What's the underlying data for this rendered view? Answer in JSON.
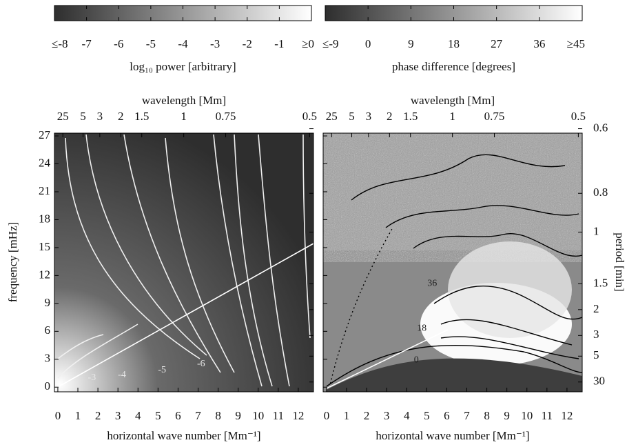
{
  "chart_data": [
    {
      "type": "heatmap",
      "colorbar": {
        "label": "log₁₀ power [arbitrary]",
        "lim": [
          -8,
          0
        ],
        "ticks": [
          {
            "value": -8,
            "label": "≤-8"
          },
          -7,
          -6,
          -5,
          -4,
          -3,
          -2,
          -1,
          {
            "value": 0,
            "label": "≥0"
          }
        ]
      },
      "colormap": [
        "#2e2e2e",
        "#ffffff"
      ],
      "top_axis": {
        "label": "wavelength [Mm]",
        "ticks": [
          25,
          5,
          3,
          2,
          1.5,
          1,
          0.75,
          0.5
        ]
      },
      "xlabel": "horizontal wave number [Mm⁻¹]",
      "ylabel": "frequency [mHz]",
      "xlim": [
        -0.17,
        12.76
      ],
      "xticks": [
        0,
        1,
        2,
        3,
        4,
        5,
        6,
        7,
        8,
        9,
        10,
        11,
        12
      ],
      "ylim": [
        -0.5,
        27.3
      ],
      "yticks": [
        0,
        3,
        6,
        9,
        12,
        15,
        18,
        21,
        24,
        27
      ],
      "annotations": [
        {
          "text": "-3",
          "x": 1.7,
          "y": 1.0
        },
        {
          "text": "-4",
          "x": 3.2,
          "y": 1.3
        },
        {
          "text": "-5",
          "x": 5.2,
          "y": 1.8
        },
        {
          "text": "-6",
          "x": 7.15,
          "y": 2.5
        }
      ]
    },
    {
      "type": "heatmap",
      "colorbar": {
        "label": "phase difference [degrees]",
        "lim": [
          -9,
          45
        ],
        "ticks": [
          {
            "value": -9,
            "label": "≤-9"
          },
          0,
          9,
          18,
          27,
          36,
          {
            "value": 45,
            "label": "≥45"
          }
        ]
      },
      "colormap": [
        "#2e2e2e",
        "#ffffff"
      ],
      "top_axis": {
        "label": "wavelength [Mm]",
        "ticks": [
          25,
          5,
          3,
          2,
          1.5,
          1,
          0.75,
          0.5
        ]
      },
      "right_axis": {
        "label": "period [min]",
        "ticks": [
          0.6,
          0.8,
          1,
          1.5,
          2,
          3,
          5,
          30
        ]
      },
      "xlabel": "horizontal wave number [Mm⁻¹]",
      "xlim": [
        -0.17,
        12.76
      ],
      "xticks": [
        0,
        1,
        2,
        3,
        4,
        5,
        6,
        7,
        8,
        9,
        10,
        11,
        12
      ],
      "ylim": [
        -0.5,
        27.3
      ],
      "annotations": [
        {
          "text": "0",
          "x": 4.48,
          "y": 2.9
        },
        {
          "text": "18",
          "x": 4.75,
          "y": 6.3
        },
        {
          "text": "36",
          "x": 5.27,
          "y": 11.1
        }
      ]
    }
  ]
}
